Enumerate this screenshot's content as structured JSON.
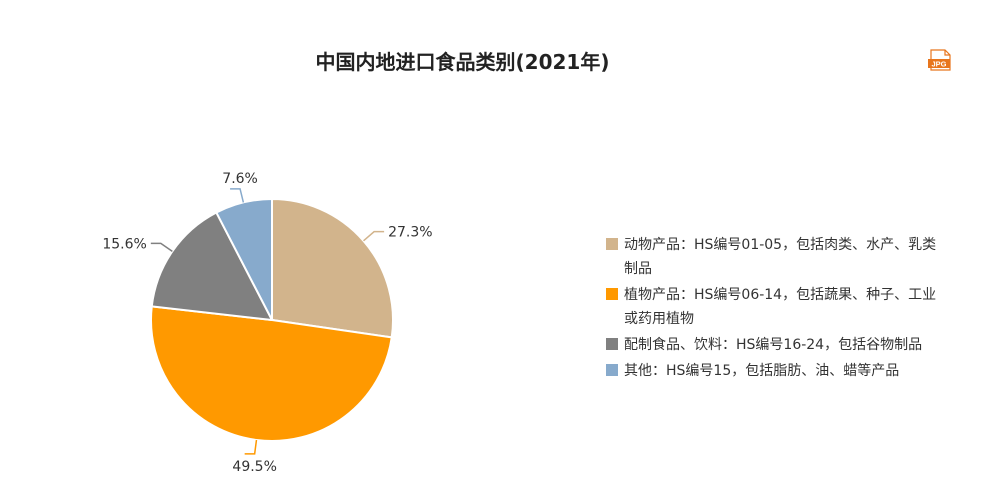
{
  "chart_data": {
    "type": "pie",
    "title": "中国内地进口食品类别(2021年)",
    "slices": [
      {
        "label": "动物产品：HS编号01-05，包括肉类、水产、乳类制品",
        "value": 27.3,
        "data_label": "27.3%",
        "color": "#d2b48c"
      },
      {
        "label": "植物产品：HS编号06-14，包括蔬果、种子、工业或药用植物",
        "value": 49.5,
        "data_label": "49.5%",
        "color": "#ff9900"
      },
      {
        "label": "配制食品、饮料：HS编号16-24，包括谷物制品",
        "value": 15.6,
        "data_label": "15.6%",
        "color": "#808080"
      },
      {
        "label": "其他：HS编号15，包括脂肪、油、蜡等产品",
        "value": 7.6,
        "data_label": "7.6%",
        "color": "#87aacc"
      }
    ],
    "legend_position": "right"
  },
  "toolbar": {
    "export_label": "JPG",
    "export_color": "#e8761d"
  }
}
